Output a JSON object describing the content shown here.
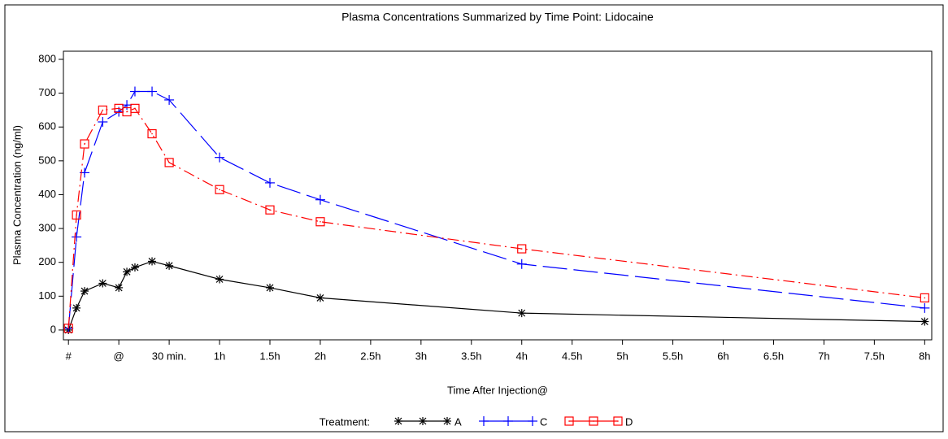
{
  "chart_data": {
    "type": "line",
    "title": "Plasma Concentrations Summarized by Time Point: Lidocaine",
    "x_label": "Time After Injection@",
    "y_label": "Plasma Concentration (ng/ml)",
    "legend_title": "Treatment:",
    "xlim": [
      -0.55,
      8.07
    ],
    "ylim": [
      -29,
      824
    ],
    "xticks": [
      {
        "value": -0.5,
        "label": "#"
      },
      {
        "value": 0,
        "label": "@"
      },
      {
        "value": 0.5,
        "label": "30 min."
      },
      {
        "value": 1,
        "label": "1h"
      },
      {
        "value": 1.5,
        "label": "1.5h"
      },
      {
        "value": 2,
        "label": "2h"
      },
      {
        "value": 2.5,
        "label": "2.5h"
      },
      {
        "value": 3,
        "label": "3h"
      },
      {
        "value": 3.5,
        "label": "3.5h"
      },
      {
        "value": 4,
        "label": "4h"
      },
      {
        "value": 4.5,
        "label": "4.5h"
      },
      {
        "value": 5,
        "label": "5h"
      },
      {
        "value": 5.5,
        "label": "5.5h"
      },
      {
        "value": 6,
        "label": "6h"
      },
      {
        "value": 6.5,
        "label": "6.5h"
      },
      {
        "value": 7,
        "label": "7h"
      },
      {
        "value": 7.5,
        "label": "7.5h"
      },
      {
        "value": 8,
        "label": "8h"
      }
    ],
    "yticks": [
      0,
      100,
      200,
      300,
      400,
      500,
      600,
      700,
      800
    ],
    "x": [
      -0.5,
      -0.42,
      -0.34,
      -0.16,
      0,
      0.08,
      0.16,
      0.33,
      0.5,
      1,
      1.5,
      2,
      4,
      8
    ],
    "series": [
      {
        "name": "A",
        "color": "#000000",
        "marker": "star",
        "dash": "none",
        "values": [
          0,
          65,
          115,
          138,
          125,
          172,
          185,
          203,
          190,
          150,
          125,
          95,
          50,
          25
        ]
      },
      {
        "name": "C",
        "color": "#0000ff",
        "marker": "plus",
        "dash": "30 8",
        "values": [
          5,
          275,
          465,
          615,
          645,
          665,
          705,
          705,
          680,
          510,
          435,
          385,
          195,
          65
        ]
      },
      {
        "name": "D",
        "color": "#ff0000",
        "marker": "square",
        "dash": "14 5 2 5",
        "values": [
          5,
          340,
          550,
          650,
          655,
          645,
          655,
          580,
          495,
          415,
          355,
          320,
          240,
          95
        ]
      }
    ]
  }
}
